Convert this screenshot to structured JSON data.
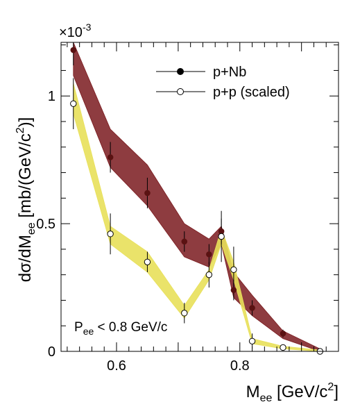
{
  "chart_data": {
    "type": "scatter",
    "title": "",
    "xlabel": "M",
    "xlabel_sub": "ee",
    "xlabel_unit": " [GeV/c",
    "xlabel_sup": "2",
    "xlabel_close": "]",
    "ylabel": "dσ/dM",
    "ylabel_sub": "ee",
    "ylabel_unit": " [mb/(GeV/c",
    "ylabel_sup": "2",
    "ylabel_close": ")]",
    "y_multiplier": "×10",
    "y_multiplier_exp": "-3",
    "xlim": [
      0.51,
      0.96
    ],
    "ylim": [
      0,
      0.00121
    ],
    "x_ticks": [
      0.6,
      0.8
    ],
    "y_ticks": [
      {
        "value": 0,
        "label": "0"
      },
      {
        "value": 0.0005,
        "label": "0.5"
      },
      {
        "value": 0.001,
        "label": "1"
      }
    ],
    "grid": false,
    "legend_position": "top-right",
    "annotation": {
      "prefix": "P",
      "sub": "ee",
      "suffix": " < 0.8 GeV/c"
    },
    "series": [
      {
        "name": "p+Nb",
        "marker": "filled-circle",
        "marker_color": "#5a1212",
        "band_color": "#7a1a1e",
        "x": [
          0.53,
          0.59,
          0.65,
          0.71,
          0.75,
          0.77,
          0.79,
          0.82,
          0.87,
          0.93
        ],
        "y": [
          0.00118,
          0.00076,
          0.00062,
          0.00043,
          0.00038,
          0.00047,
          0.00024,
          0.00017,
          7e-05,
          0.0
        ],
        "err": [
          6e-05,
          6e-05,
          6e-05,
          4e-05,
          4e-05,
          5e-05,
          4e-05,
          3e-05,
          1.5e-05,
          0.0
        ],
        "band_lo": [
          0.00108,
          0.00072,
          0.00057,
          0.00037,
          0.00033,
          0.00042,
          0.00021,
          0.00014,
          5e-05,
          0.0
        ],
        "band_hi": [
          0.00121,
          0.00087,
          0.00073,
          0.0005,
          0.00044,
          0.00049,
          0.00031,
          0.00022,
          8e-05,
          1e-05
        ]
      },
      {
        "name": "p+p (scaled)",
        "marker": "open-circle",
        "marker_color": "#000000",
        "band_color": "#e8e05a",
        "x": [
          0.53,
          0.59,
          0.65,
          0.71,
          0.75,
          0.77,
          0.79,
          0.82,
          0.87,
          0.93
        ],
        "y": [
          0.00097,
          0.00046,
          0.00035,
          0.00015,
          0.0003,
          0.00045,
          0.00032,
          4e-05,
          1.5e-05,
          0.0
        ],
        "err": [
          0.0001,
          8e-05,
          4e-05,
          4e-05,
          5e-05,
          0.0001,
          9e-05,
          3e-05,
          1e-05,
          0.0
        ],
        "band_lo": [
          0.00093,
          0.00042,
          0.00031,
          0.00013,
          0.00028,
          0.00042,
          0.00028,
          3e-05,
          1e-05,
          0.0
        ],
        "band_hi": [
          0.00105,
          0.00049,
          0.00039,
          0.00018,
          0.00032,
          0.00048,
          0.00035,
          5e-05,
          2e-05,
          5e-06
        ]
      }
    ]
  }
}
